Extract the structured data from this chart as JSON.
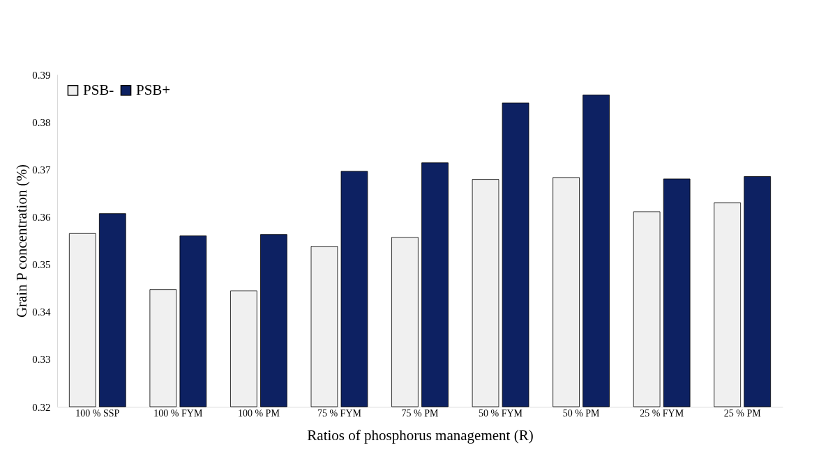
{
  "chart_data": {
    "type": "bar",
    "xlabel": "Ratios of phosphorus management (R)",
    "ylabel": "Grain P concentration (%)",
    "categories": [
      "100 % SSP",
      "100 % FYM",
      "100 %  PM",
      "75 % FYM",
      "75 % PM",
      "50 % FYM",
      "50 % PM",
      "25 % FYM",
      "25 % PM"
    ],
    "series": [
      {
        "name": "PSB-",
        "color": "#f0f0f0",
        "values": [
          0.3565,
          0.3447,
          0.3444,
          0.3538,
          0.3557,
          0.3679,
          0.3683,
          0.3611,
          0.363
        ]
      },
      {
        "name": "PSB+",
        "color": "#0d2162",
        "values": [
          0.3607,
          0.356,
          0.3563,
          0.3696,
          0.3714,
          0.384,
          0.3857,
          0.368,
          0.3685
        ]
      }
    ],
    "ylim": [
      0.32,
      0.39
    ],
    "yticks": [
      0.32,
      0.33,
      0.34,
      0.35,
      0.36,
      0.37,
      0.38,
      0.39
    ],
    "grid": false,
    "legend": "top left"
  }
}
